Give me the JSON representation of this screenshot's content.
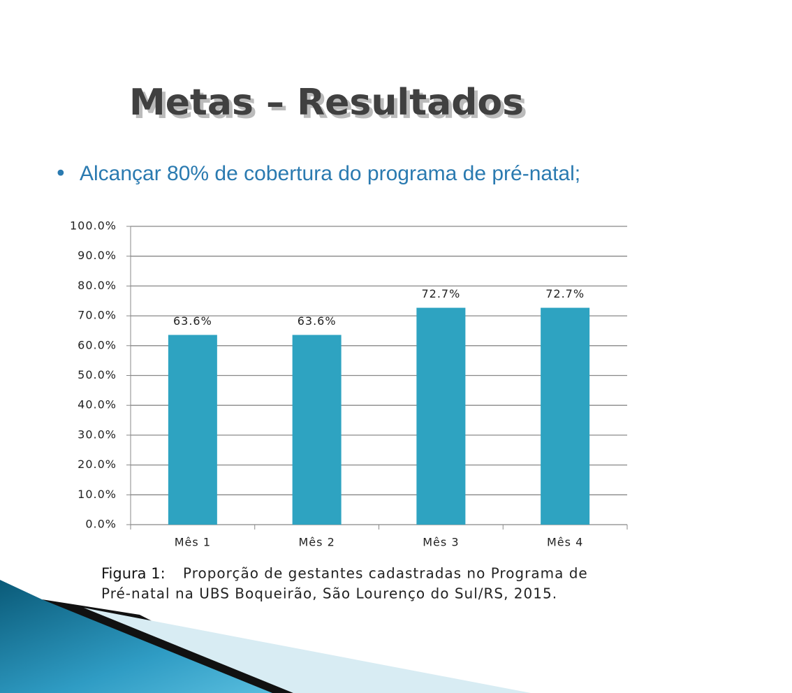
{
  "title": "Metas – Resultados",
  "bullet": "Alcançar 80% de cobertura do programa de pré-natal;",
  "caption": {
    "label": "Figura 1:",
    "lines": [
      "Proporção de gestantes cadastradas no Programa de",
      "Pré-natal na UBS Boqueirão, São Lourenço do Sul/RS, 2015."
    ]
  },
  "chart_data": {
    "type": "bar",
    "categories": [
      "Mês 1",
      "Mês 2",
      "Mês 3",
      "Mês 4"
    ],
    "values": [
      63.6,
      63.6,
      72.7,
      72.7
    ],
    "value_labels": [
      "63.6%",
      "63.6%",
      "72.7%",
      "72.7%"
    ],
    "color": "#2ea3c1",
    "ylim": [
      0,
      100
    ],
    "yticks": [
      {
        "value": 0,
        "label": "0.0%"
      },
      {
        "value": 10,
        "label": "10.0%"
      },
      {
        "value": 20,
        "label": "20.0%"
      },
      {
        "value": 30,
        "label": "30.0%"
      },
      {
        "value": 40,
        "label": "40.0%"
      },
      {
        "value": 50,
        "label": "50.0%"
      },
      {
        "value": 60,
        "label": "60.0%"
      },
      {
        "value": 70,
        "label": "70.0%"
      },
      {
        "value": 80,
        "label": "80.0%"
      },
      {
        "value": 90,
        "label": "90.0%"
      },
      {
        "value": 100,
        "label": "100.0%"
      }
    ],
    "grid": true
  }
}
